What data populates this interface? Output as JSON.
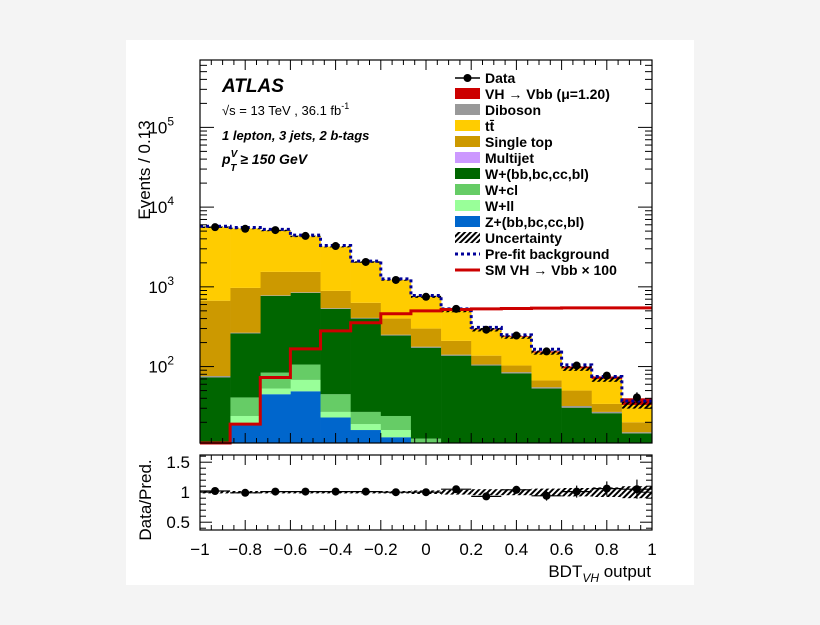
{
  "chart_data": [
    {
      "type": "bar",
      "stacked": true,
      "log_y": true,
      "ylabel": "Events / 0.13",
      "ylim": [
        11,
        700000
      ],
      "xlim": [
        -1,
        1
      ],
      "bin_edges": [
        -1,
        -0.8667,
        -0.7333,
        -0.6,
        -0.4667,
        -0.3333,
        -0.2,
        -0.0667,
        0.0667,
        0.2,
        0.3333,
        0.4667,
        0.6,
        0.7333,
        0.8667,
        1
      ],
      "y_tick_labels": [
        {
          "base": "10",
          "exp": "2",
          "value": 100
        },
        {
          "base": "10",
          "exp": "3",
          "value": 1000
        },
        {
          "base": "10",
          "exp": "4",
          "value": 10000
        },
        {
          "base": "10",
          "exp": "5",
          "value": 100000
        }
      ],
      "experiment": "ATLAS",
      "energy_text": "√s = 13 TeV , 36.1 fb",
      "energy_sup": "-1",
      "selection_text": "1 lepton, 3 jets, 2 b-tags",
      "pt_cut": {
        "p": "p",
        "sup": "V",
        "sub": "T",
        "rest": " ≥ 150 GeV"
      },
      "legend_placement": "top-right",
      "legend": [
        {
          "key": "data",
          "label": "Data",
          "style": "marker",
          "color": "#000000"
        },
        {
          "key": "signal",
          "label": "VH → Vbb (μ=1.20)",
          "style": "fill",
          "color": "#cc0000"
        },
        {
          "key": "diboson",
          "label": "Diboson",
          "style": "fill",
          "color": "#999999"
        },
        {
          "key": "ttbar",
          "label": "tt̄",
          "style": "fill",
          "color": "#ffcc00"
        },
        {
          "key": "singletop",
          "label": "Single top",
          "style": "fill",
          "color": "#cc9900"
        },
        {
          "key": "multijet",
          "label": "Multijet",
          "style": "fill",
          "color": "#cc99ff"
        },
        {
          "key": "whf",
          "label": "W+(bb,bc,cc,bl)",
          "style": "fill",
          "color": "#006600"
        },
        {
          "key": "wcl",
          "label": "W+cl",
          "style": "fill",
          "color": "#66cc66"
        },
        {
          "key": "wll",
          "label": "W+ll",
          "style": "fill",
          "color": "#99ff99"
        },
        {
          "key": "zhf",
          "label": "Z+(bb,bc,cc,bl)",
          "style": "fill",
          "color": "#0066cc"
        },
        {
          "key": "unc",
          "label": "Uncertainty",
          "style": "hatch",
          "color": "#000000"
        },
        {
          "key": "prefit",
          "label": "Pre-fit background",
          "style": "dotted",
          "color": "#000099"
        },
        {
          "key": "smvh",
          "label": "SM VH → Vbb × 100",
          "style": "line",
          "color": "#cc0000"
        }
      ],
      "stack_order": [
        "zhf",
        "wll",
        "wcl",
        "whf",
        "multijet",
        "diboson",
        "singletop",
        "ttbar",
        "signal"
      ],
      "series": {
        "zhf": [
          5,
          19,
          45,
          49,
          23,
          16,
          13,
          8,
          6,
          4,
          3,
          2,
          1,
          1,
          1
        ],
        "wll": [
          2,
          5,
          8,
          19,
          4,
          3,
          3,
          3,
          3,
          2,
          1,
          1,
          1,
          0.5,
          0.3
        ],
        "wcl": [
          3,
          17,
          31,
          38,
          18,
          8,
          8,
          1.5,
          2,
          1,
          1,
          1,
          0.5,
          0.5,
          0.2
        ],
        "whf": [
          63,
          219,
          686,
          734,
          485,
          373,
          221,
          160,
          126,
          96,
          77,
          49,
          28,
          24,
          13
        ],
        "multijet": [
          0,
          0,
          0,
          0,
          0,
          0,
          0,
          0,
          0,
          0,
          0,
          0,
          0,
          0,
          0
        ],
        "diboson": [
          3,
          6,
          12,
          14,
          10,
          8,
          6,
          5,
          4,
          3,
          3,
          2,
          1.5,
          1,
          0.5
        ],
        "singletop": [
          594,
          704,
          758,
          686,
          350,
          222,
          149,
          122,
          69,
          31,
          18,
          12,
          18,
          7,
          5
        ],
        "ttbar": [
          4930,
          4430,
          3560,
          2760,
          2310,
          1420,
          820,
          450,
          290,
          153,
          132,
          83,
          45,
          36,
          13
        ],
        "signal": [
          0.3,
          0.6,
          1,
          1.5,
          2,
          2.5,
          3,
          3.5,
          4,
          4.5,
          5,
          5,
          5,
          5,
          7
        ]
      },
      "data": [
        5600,
        5350,
        5150,
        4350,
        3250,
        2050,
        1220,
        750,
        530,
        290,
        245,
        155,
        103,
        77,
        41
      ],
      "prefit_background": [
        5750,
        5550,
        5250,
        4450,
        3300,
        2100,
        1260,
        780,
        530,
        310,
        250,
        165,
        105,
        75,
        37
      ],
      "sm_vh_x100": [
        8,
        19,
        73,
        167,
        280,
        355,
        460,
        500,
        520,
        530,
        535,
        540,
        545,
        545,
        545
      ],
      "uncertainty_rel": [
        0.02,
        0.02,
        0.02,
        0.02,
        0.02,
        0.02,
        0.02,
        0.03,
        0.04,
        0.05,
        0.05,
        0.06,
        0.07,
        0.08,
        0.1
      ]
    },
    {
      "type": "scatter",
      "ylabel": "Data/Pred.",
      "xlabel": "BDT",
      "xlabel_sub": "VH",
      "xlabel_rest": " output",
      "xlim": [
        -1,
        1
      ],
      "ylim": [
        0.37,
        1.62
      ],
      "x_tick_labels": [
        "−1",
        "−0.8",
        "−0.6",
        "−0.4",
        "−0.2",
        "0",
        "0.2",
        "0.4",
        "0.6",
        "0.8",
        "1"
      ],
      "x_tick_values": [
        -1,
        -0.8,
        -0.6,
        -0.4,
        -0.2,
        0,
        0.2,
        0.4,
        0.6,
        0.8,
        1
      ],
      "y_tick_labels": [
        "0.5",
        "1",
        "1.5"
      ],
      "y_tick_values": [
        0.5,
        1,
        1.5
      ],
      "ratio": [
        1.02,
        0.99,
        1.01,
        1.01,
        1.01,
        1.01,
        1.0,
        1.0,
        1.05,
        0.93,
        1.04,
        0.94,
        1.01,
        1.06,
        1.05
      ],
      "ratio_err": [
        0.014,
        0.014,
        0.014,
        0.015,
        0.018,
        0.022,
        0.029,
        0.037,
        0.043,
        0.059,
        0.064,
        0.08,
        0.1,
        0.12,
        0.16
      ]
    }
  ]
}
